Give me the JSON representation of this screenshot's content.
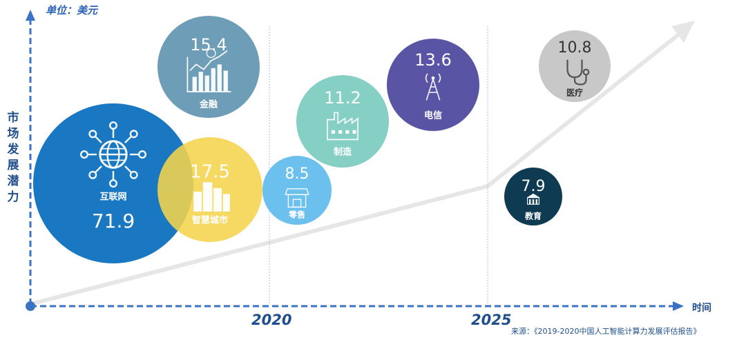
{
  "chart_data": {
    "type": "bubble",
    "unit_label": "单位：美元",
    "ylabel": "市场发展潜力",
    "xlabel": "时间",
    "x_ticks": [
      "2020",
      "2025"
    ],
    "source": "来源：《2019-2020中国人工智能计算力发展评估报告》",
    "bubbles": [
      {
        "label": "互联网",
        "value": 71.9,
        "color": "#1a78c2",
        "icon": "globe-network-icon"
      },
      {
        "label": "金融",
        "value": 15.4,
        "color": "#6d9db7",
        "icon": "bar-chart-money-icon"
      },
      {
        "label": "智慧城市",
        "value": 17.5,
        "color": "#f4d44c",
        "icon": "city-buildings-icon"
      },
      {
        "label": "零售",
        "value": 8.5,
        "color": "#6cc0ee",
        "icon": "store-icon"
      },
      {
        "label": "制造",
        "value": 11.2,
        "color": "#85cfc4",
        "icon": "factory-icon"
      },
      {
        "label": "电信",
        "value": 13.6,
        "color": "#5a54a4",
        "icon": "signal-tower-icon"
      },
      {
        "label": "医疗",
        "value": 10.8,
        "color": "#c8c8c8",
        "icon": "stethoscope-icon"
      },
      {
        "label": "教育",
        "value": 7.9,
        "color": "#0e3a52",
        "icon": "school-icon"
      }
    ]
  }
}
